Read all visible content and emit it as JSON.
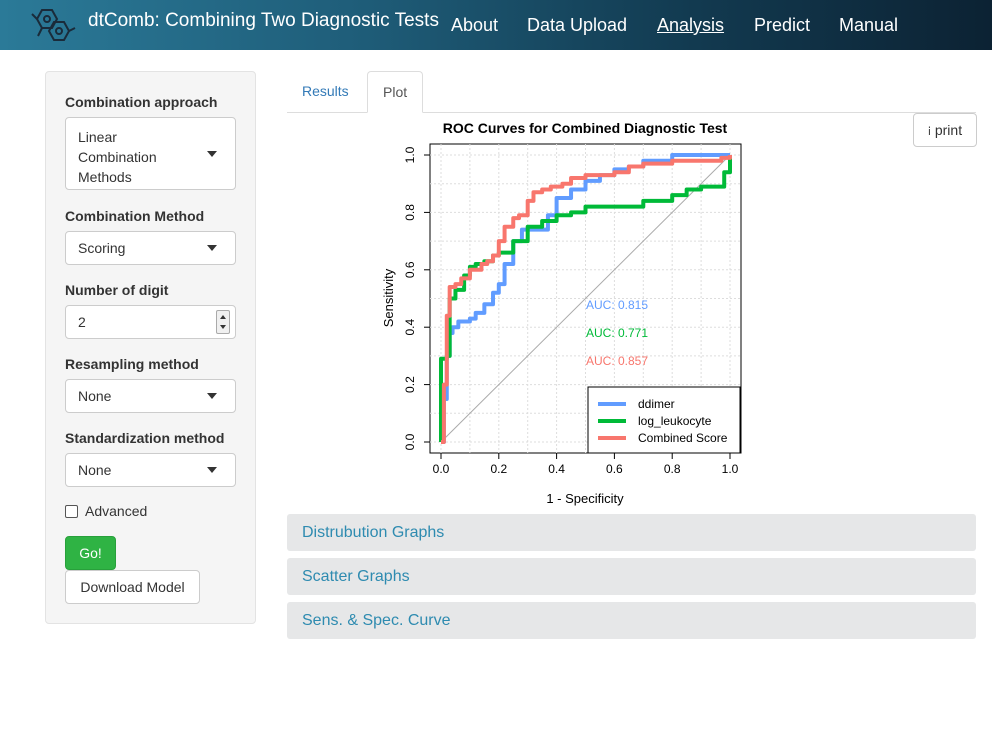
{
  "app": {
    "title": "dtComb: Combining Two Diagnostic Tests"
  },
  "nav": {
    "items": [
      "About",
      "Data Upload",
      "Analysis",
      "Predict",
      "Manual"
    ],
    "active": "Analysis"
  },
  "sidebar": {
    "combination_approach": {
      "label": "Combination approach",
      "value": "Linear Combination Methods"
    },
    "combination_method": {
      "label": "Combination Method",
      "value": "Scoring"
    },
    "digits": {
      "label": "Number of digit",
      "value": "2"
    },
    "resampling": {
      "label": "Resampling method",
      "value": "None"
    },
    "standardization": {
      "label": "Standardization method",
      "value": "None"
    },
    "advanced": {
      "label": "Advanced",
      "checked": false
    },
    "go_label": "Go!",
    "download_label": "Download Model"
  },
  "tabs": [
    {
      "label": "Results"
    },
    {
      "label": "Plot"
    }
  ],
  "active_tab": "Plot",
  "print_label": "print",
  "chart_data": {
    "type": "line",
    "title": "ROC Curves for Combined Diagnostic Test",
    "xlabel": "1 - Specificity",
    "ylabel": "Sensitivity",
    "xlim": [
      0,
      1
    ],
    "ylim": [
      0,
      1
    ],
    "x_ticks": [
      "0.0",
      "0.2",
      "0.4",
      "0.6",
      "0.8",
      "1.0"
    ],
    "y_ticks": [
      "0.0",
      "0.2",
      "0.4",
      "0.6",
      "0.8",
      "1.0"
    ],
    "grid": true,
    "legend_position": "bottom-right",
    "series": [
      {
        "name": "ddimer",
        "color": "#619cff",
        "auc_label": "AUC: 0.815",
        "x": [
          0,
          0.01,
          0.02,
          0.03,
          0.04,
          0.06,
          0.1,
          0.12,
          0.15,
          0.18,
          0.2,
          0.22,
          0.25,
          0.28,
          0.3,
          0.35,
          0.37,
          0.4,
          0.45,
          0.5,
          0.55,
          0.6,
          0.65,
          0.7,
          0.8,
          0.9,
          1.0
        ],
        "y": [
          0,
          0.15,
          0.3,
          0.38,
          0.4,
          0.42,
          0.43,
          0.45,
          0.48,
          0.52,
          0.55,
          0.62,
          0.7,
          0.74,
          0.74,
          0.74,
          0.79,
          0.85,
          0.88,
          0.91,
          0.93,
          0.95,
          0.96,
          0.98,
          1.0,
          1.0,
          1.0
        ]
      },
      {
        "name": "log_leukocyte",
        "color": "#00ba38",
        "auc_label": "AUC: 0.771",
        "x": [
          0,
          0.0,
          0.01,
          0.02,
          0.03,
          0.05,
          0.08,
          0.1,
          0.12,
          0.15,
          0.18,
          0.2,
          0.25,
          0.3,
          0.35,
          0.4,
          0.45,
          0.5,
          0.6,
          0.7,
          0.8,
          0.85,
          0.9,
          0.98,
          1.0,
          1.0
        ],
        "y": [
          0,
          0.29,
          0.29,
          0.3,
          0.5,
          0.53,
          0.58,
          0.61,
          0.62,
          0.63,
          0.65,
          0.66,
          0.7,
          0.75,
          0.77,
          0.79,
          0.8,
          0.82,
          0.82,
          0.84,
          0.86,
          0.88,
          0.89,
          0.94,
          0.94,
          1.0
        ]
      },
      {
        "name": "Combined Score",
        "color": "#f8766d",
        "auc_label": "AUC: 0.857",
        "x": [
          0,
          0.01,
          0.02,
          0.03,
          0.05,
          0.07,
          0.1,
          0.14,
          0.16,
          0.18,
          0.2,
          0.22,
          0.25,
          0.27,
          0.3,
          0.32,
          0.35,
          0.38,
          0.42,
          0.45,
          0.5,
          0.6,
          0.65,
          0.7,
          0.8,
          0.9,
          0.97,
          1.0
        ],
        "y": [
          0,
          0.2,
          0.44,
          0.54,
          0.55,
          0.57,
          0.6,
          0.62,
          0.63,
          0.65,
          0.7,
          0.75,
          0.78,
          0.79,
          0.84,
          0.87,
          0.88,
          0.89,
          0.9,
          0.92,
          0.93,
          0.94,
          0.96,
          0.97,
          0.98,
          0.98,
          0.99,
          1.0
        ]
      }
    ]
  },
  "panels": [
    {
      "label": "Distrubution Graphs"
    },
    {
      "label": "Scatter Graphs"
    },
    {
      "label": "Sens. & Spec. Curve"
    }
  ]
}
